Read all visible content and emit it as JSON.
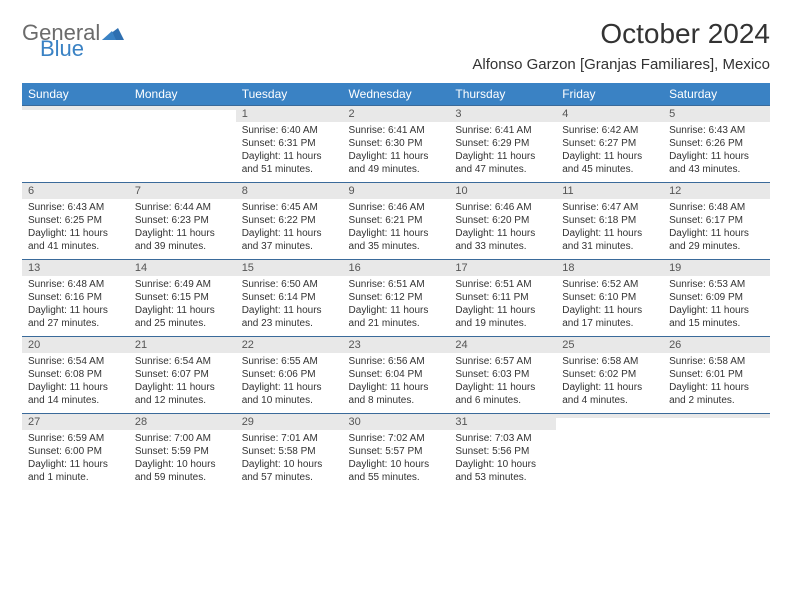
{
  "brand": {
    "word1": "General",
    "word2": "Blue",
    "color1": "#6b6b6b",
    "color2": "#3a82c4"
  },
  "title": "October 2024",
  "location": "Alfonso Garzon [Granjas Familiares], Mexico",
  "colors": {
    "header_bg": "#3a82c4",
    "header_fg": "#ffffff",
    "daynum_bg": "#e8e8e8",
    "border": "#3a6a9a"
  },
  "dow": [
    "Sunday",
    "Monday",
    "Tuesday",
    "Wednesday",
    "Thursday",
    "Friday",
    "Saturday"
  ],
  "weeks": [
    [
      {
        "n": "",
        "l": [
          "",
          "",
          "",
          ""
        ]
      },
      {
        "n": "",
        "l": [
          "",
          "",
          "",
          ""
        ]
      },
      {
        "n": "1",
        "l": [
          "Sunrise: 6:40 AM",
          "Sunset: 6:31 PM",
          "Daylight: 11 hours",
          "and 51 minutes."
        ]
      },
      {
        "n": "2",
        "l": [
          "Sunrise: 6:41 AM",
          "Sunset: 6:30 PM",
          "Daylight: 11 hours",
          "and 49 minutes."
        ]
      },
      {
        "n": "3",
        "l": [
          "Sunrise: 6:41 AM",
          "Sunset: 6:29 PM",
          "Daylight: 11 hours",
          "and 47 minutes."
        ]
      },
      {
        "n": "4",
        "l": [
          "Sunrise: 6:42 AM",
          "Sunset: 6:27 PM",
          "Daylight: 11 hours",
          "and 45 minutes."
        ]
      },
      {
        "n": "5",
        "l": [
          "Sunrise: 6:43 AM",
          "Sunset: 6:26 PM",
          "Daylight: 11 hours",
          "and 43 minutes."
        ]
      }
    ],
    [
      {
        "n": "6",
        "l": [
          "Sunrise: 6:43 AM",
          "Sunset: 6:25 PM",
          "Daylight: 11 hours",
          "and 41 minutes."
        ]
      },
      {
        "n": "7",
        "l": [
          "Sunrise: 6:44 AM",
          "Sunset: 6:23 PM",
          "Daylight: 11 hours",
          "and 39 minutes."
        ]
      },
      {
        "n": "8",
        "l": [
          "Sunrise: 6:45 AM",
          "Sunset: 6:22 PM",
          "Daylight: 11 hours",
          "and 37 minutes."
        ]
      },
      {
        "n": "9",
        "l": [
          "Sunrise: 6:46 AM",
          "Sunset: 6:21 PM",
          "Daylight: 11 hours",
          "and 35 minutes."
        ]
      },
      {
        "n": "10",
        "l": [
          "Sunrise: 6:46 AM",
          "Sunset: 6:20 PM",
          "Daylight: 11 hours",
          "and 33 minutes."
        ]
      },
      {
        "n": "11",
        "l": [
          "Sunrise: 6:47 AM",
          "Sunset: 6:18 PM",
          "Daylight: 11 hours",
          "and 31 minutes."
        ]
      },
      {
        "n": "12",
        "l": [
          "Sunrise: 6:48 AM",
          "Sunset: 6:17 PM",
          "Daylight: 11 hours",
          "and 29 minutes."
        ]
      }
    ],
    [
      {
        "n": "13",
        "l": [
          "Sunrise: 6:48 AM",
          "Sunset: 6:16 PM",
          "Daylight: 11 hours",
          "and 27 minutes."
        ]
      },
      {
        "n": "14",
        "l": [
          "Sunrise: 6:49 AM",
          "Sunset: 6:15 PM",
          "Daylight: 11 hours",
          "and 25 minutes."
        ]
      },
      {
        "n": "15",
        "l": [
          "Sunrise: 6:50 AM",
          "Sunset: 6:14 PM",
          "Daylight: 11 hours",
          "and 23 minutes."
        ]
      },
      {
        "n": "16",
        "l": [
          "Sunrise: 6:51 AM",
          "Sunset: 6:12 PM",
          "Daylight: 11 hours",
          "and 21 minutes."
        ]
      },
      {
        "n": "17",
        "l": [
          "Sunrise: 6:51 AM",
          "Sunset: 6:11 PM",
          "Daylight: 11 hours",
          "and 19 minutes."
        ]
      },
      {
        "n": "18",
        "l": [
          "Sunrise: 6:52 AM",
          "Sunset: 6:10 PM",
          "Daylight: 11 hours",
          "and 17 minutes."
        ]
      },
      {
        "n": "19",
        "l": [
          "Sunrise: 6:53 AM",
          "Sunset: 6:09 PM",
          "Daylight: 11 hours",
          "and 15 minutes."
        ]
      }
    ],
    [
      {
        "n": "20",
        "l": [
          "Sunrise: 6:54 AM",
          "Sunset: 6:08 PM",
          "Daylight: 11 hours",
          "and 14 minutes."
        ]
      },
      {
        "n": "21",
        "l": [
          "Sunrise: 6:54 AM",
          "Sunset: 6:07 PM",
          "Daylight: 11 hours",
          "and 12 minutes."
        ]
      },
      {
        "n": "22",
        "l": [
          "Sunrise: 6:55 AM",
          "Sunset: 6:06 PM",
          "Daylight: 11 hours",
          "and 10 minutes."
        ]
      },
      {
        "n": "23",
        "l": [
          "Sunrise: 6:56 AM",
          "Sunset: 6:04 PM",
          "Daylight: 11 hours",
          "and 8 minutes."
        ]
      },
      {
        "n": "24",
        "l": [
          "Sunrise: 6:57 AM",
          "Sunset: 6:03 PM",
          "Daylight: 11 hours",
          "and 6 minutes."
        ]
      },
      {
        "n": "25",
        "l": [
          "Sunrise: 6:58 AM",
          "Sunset: 6:02 PM",
          "Daylight: 11 hours",
          "and 4 minutes."
        ]
      },
      {
        "n": "26",
        "l": [
          "Sunrise: 6:58 AM",
          "Sunset: 6:01 PM",
          "Daylight: 11 hours",
          "and 2 minutes."
        ]
      }
    ],
    [
      {
        "n": "27",
        "l": [
          "Sunrise: 6:59 AM",
          "Sunset: 6:00 PM",
          "Daylight: 11 hours",
          "and 1 minute."
        ]
      },
      {
        "n": "28",
        "l": [
          "Sunrise: 7:00 AM",
          "Sunset: 5:59 PM",
          "Daylight: 10 hours",
          "and 59 minutes."
        ]
      },
      {
        "n": "29",
        "l": [
          "Sunrise: 7:01 AM",
          "Sunset: 5:58 PM",
          "Daylight: 10 hours",
          "and 57 minutes."
        ]
      },
      {
        "n": "30",
        "l": [
          "Sunrise: 7:02 AM",
          "Sunset: 5:57 PM",
          "Daylight: 10 hours",
          "and 55 minutes."
        ]
      },
      {
        "n": "31",
        "l": [
          "Sunrise: 7:03 AM",
          "Sunset: 5:56 PM",
          "Daylight: 10 hours",
          "and 53 minutes."
        ]
      },
      {
        "n": "",
        "l": [
          "",
          "",
          "",
          ""
        ]
      },
      {
        "n": "",
        "l": [
          "",
          "",
          "",
          ""
        ]
      }
    ]
  ]
}
